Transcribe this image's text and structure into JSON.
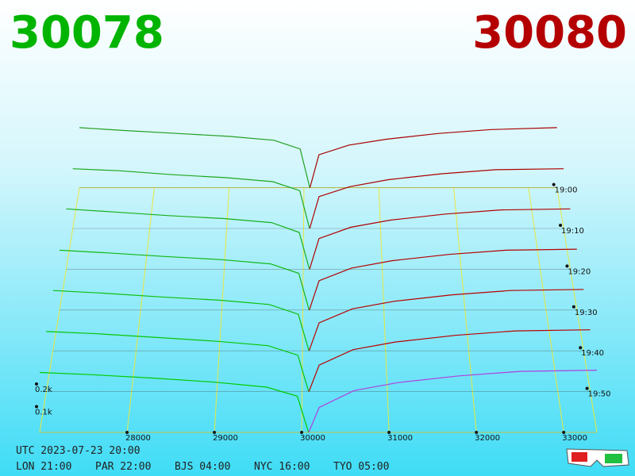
{
  "header": {
    "bid": 30078,
    "ask": 30080
  },
  "chart_data": {
    "type": "depth3d",
    "xlim": [
      27000,
      33380
    ],
    "xticks": [
      28000,
      29000,
      30000,
      31000,
      32000,
      33000
    ],
    "ylim": [
      0,
      1000
    ],
    "yticks": [
      {
        "value": 100,
        "label": "0.1k"
      },
      {
        "value": 200,
        "label": "0.2k"
      }
    ],
    "times": [
      "19:00",
      "19:10",
      "19:20",
      "19:30",
      "19:40",
      "19:50",
      null
    ],
    "bid_prices": [
      27000,
      27600,
      28300,
      29000,
      29600,
      29950,
      30078
    ],
    "ask_prices": [
      30080,
      30200,
      30600,
      31100,
      31800,
      32500,
      33380
    ],
    "series": [
      {
        "bid_color": "#22a022",
        "ask_color": "#a80000",
        "bid_values": [
          310,
          295,
          280,
          265,
          245,
          200,
          0
        ],
        "ask_values": [
          0,
          170,
          220,
          250,
          280,
          300,
          310
        ]
      },
      {
        "bid_color": "#1ea81e",
        "ask_color": "#ad0000",
        "bid_values": [
          300,
          290,
          270,
          255,
          235,
          190,
          0
        ],
        "ask_values": [
          0,
          160,
          210,
          245,
          275,
          295,
          300
        ]
      },
      {
        "bid_color": "#18b018",
        "ask_color": "#b00000",
        "bid_values": [
          295,
          280,
          262,
          248,
          228,
          180,
          0
        ],
        "ask_values": [
          0,
          150,
          205,
          240,
          270,
          290,
          295
        ]
      },
      {
        "bid_color": "#12b812",
        "ask_color": "#b40000",
        "bid_values": [
          285,
          272,
          255,
          240,
          220,
          175,
          0
        ],
        "ask_values": [
          0,
          140,
          200,
          235,
          265,
          285,
          290
        ]
      },
      {
        "bid_color": "#0cc00c",
        "ask_color": "#b80000",
        "bid_values": [
          280,
          268,
          250,
          235,
          215,
          170,
          0
        ],
        "ask_values": [
          0,
          130,
          195,
          230,
          260,
          280,
          285
        ]
      },
      {
        "bid_color": "#06c606",
        "ask_color": "#bc0000",
        "bid_values": [
          272,
          262,
          245,
          228,
          208,
          165,
          0
        ],
        "ask_values": [
          0,
          120,
          190,
          225,
          255,
          275,
          280
        ]
      },
      {
        "bid_color": "#00cc00",
        "ask_color": "#b040e0",
        "bid_values": [
          265,
          255,
          240,
          222,
          200,
          160,
          0
        ],
        "ask_values": [
          0,
          110,
          185,
          220,
          250,
          270,
          275
        ]
      }
    ]
  },
  "footer": {
    "utc": "UTC 2023-07-23 20:00",
    "zones": [
      "LON 21:00",
      "PAR 22:00",
      "BJS 04:00",
      "NYC 16:00",
      "TYO 05:00"
    ]
  }
}
